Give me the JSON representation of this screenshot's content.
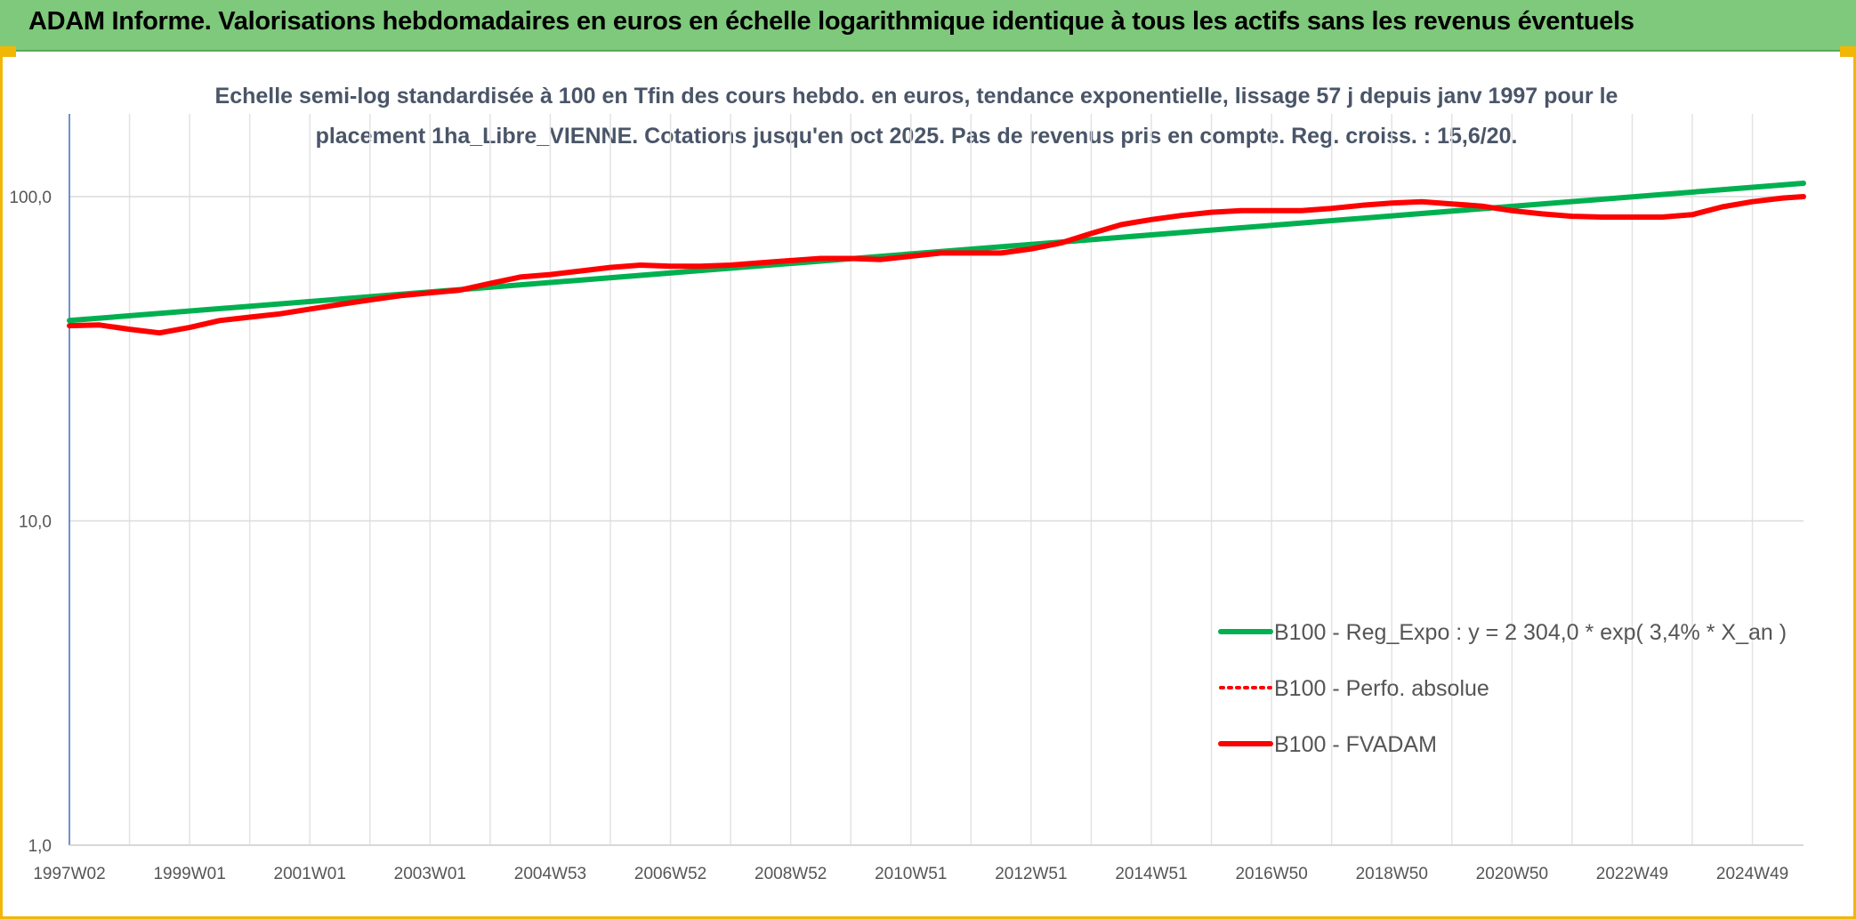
{
  "header": {
    "title": "ADAM Informe. Valorisations hebdomadaires en euros en échelle logarithmique identique à tous les actifs sans les revenus éventuels"
  },
  "chart_data": {
    "type": "line",
    "title_lines": [
      "Echelle semi-log standardisée à 100 en Tfin des cours hebdo. en euros, tendance exponentielle, lissage 57 j depuis janv 1997 pour le",
      "placement 1ha_Libre_VIENNE. Cotations jusqu'en oct 2025. Pas de revenus pris en compte. Reg. croiss. : 15,6/20."
    ],
    "yscale": "log",
    "ylim": [
      1,
      180
    ],
    "yticks": [
      {
        "value": 100,
        "label": "100,0"
      },
      {
        "value": 10,
        "label": "10,0"
      },
      {
        "value": 1,
        "label": "1,0"
      }
    ],
    "xlim": [
      1997.0,
      2025.85
    ],
    "xticks": [
      {
        "year": 1997.0,
        "label": "1997W02"
      },
      {
        "year": 1999.0,
        "label": "1999W01"
      },
      {
        "year": 2001.0,
        "label": "2001W01"
      },
      {
        "year": 2003.0,
        "label": "2003W01"
      },
      {
        "year": 2005.0,
        "label": "2004W53"
      },
      {
        "year": 2007.0,
        "label": "2006W52"
      },
      {
        "year": 2009.0,
        "label": "2008W52"
      },
      {
        "year": 2011.0,
        "label": "2010W51"
      },
      {
        "year": 2013.0,
        "label": "2012W51"
      },
      {
        "year": 2015.0,
        "label": "2014W51"
      },
      {
        "year": 2017.0,
        "label": "2016W50"
      },
      {
        "year": 2019.0,
        "label": "2018W50"
      },
      {
        "year": 2021.0,
        "label": "2020W50"
      },
      {
        "year": 2023.0,
        "label": "2022W49"
      },
      {
        "year": 2025.0,
        "label": "2024W49"
      }
    ],
    "series": [
      {
        "name": "B100 - Reg_Expo : y = 2 304,0 * exp( 3,4% *  X_an )",
        "color": "#00b050",
        "style": "solid",
        "points": [
          [
            1997.0,
            41.5
          ],
          [
            2025.85,
            110.0
          ]
        ]
      },
      {
        "name": "B100 - Perfo. absolue",
        "color": "#ff0000",
        "style": "dotted",
        "points": []
      },
      {
        "name": "B100 - FVADAM",
        "color": "#ff0000",
        "style": "solid",
        "points": [
          [
            1997.0,
            40.0
          ],
          [
            1997.5,
            40.2
          ],
          [
            1998.0,
            39.0
          ],
          [
            1998.5,
            38.0
          ],
          [
            1999.0,
            39.5
          ],
          [
            1999.5,
            41.5
          ],
          [
            2000.0,
            42.5
          ],
          [
            2000.5,
            43.5
          ],
          [
            2001.0,
            45.0
          ],
          [
            2001.5,
            46.5
          ],
          [
            2002.0,
            48.0
          ],
          [
            2002.5,
            49.5
          ],
          [
            2003.0,
            50.5
          ],
          [
            2003.5,
            51.5
          ],
          [
            2004.0,
            54.0
          ],
          [
            2004.5,
            56.5
          ],
          [
            2005.0,
            57.5
          ],
          [
            2005.5,
            59.0
          ],
          [
            2006.0,
            60.5
          ],
          [
            2006.5,
            61.5
          ],
          [
            2007.0,
            61.0
          ],
          [
            2007.5,
            61.0
          ],
          [
            2008.0,
            61.5
          ],
          [
            2008.5,
            62.5
          ],
          [
            2009.0,
            63.5
          ],
          [
            2009.5,
            64.5
          ],
          [
            2010.0,
            64.5
          ],
          [
            2010.5,
            64.0
          ],
          [
            2011.0,
            65.5
          ],
          [
            2011.5,
            67.0
          ],
          [
            2012.0,
            67.0
          ],
          [
            2012.5,
            67.0
          ],
          [
            2013.0,
            69.0
          ],
          [
            2013.5,
            72.0
          ],
          [
            2014.0,
            77.0
          ],
          [
            2014.5,
            82.0
          ],
          [
            2015.0,
            85.0
          ],
          [
            2015.5,
            87.5
          ],
          [
            2016.0,
            89.5
          ],
          [
            2016.5,
            90.5
          ],
          [
            2017.0,
            90.5
          ],
          [
            2017.5,
            90.5
          ],
          [
            2018.0,
            92.0
          ],
          [
            2018.5,
            94.0
          ],
          [
            2019.0,
            95.5
          ],
          [
            2019.5,
            96.5
          ],
          [
            2020.0,
            95.0
          ],
          [
            2020.5,
            93.5
          ],
          [
            2021.0,
            90.5
          ],
          [
            2021.5,
            88.5
          ],
          [
            2022.0,
            87.0
          ],
          [
            2022.5,
            86.5
          ],
          [
            2023.0,
            86.5
          ],
          [
            2023.5,
            86.5
          ],
          [
            2024.0,
            88.0
          ],
          [
            2024.5,
            93.0
          ],
          [
            2025.0,
            96.5
          ],
          [
            2025.5,
            99.0
          ],
          [
            2025.85,
            100.0
          ]
        ]
      }
    ],
    "legend_position": "bottom-right"
  }
}
